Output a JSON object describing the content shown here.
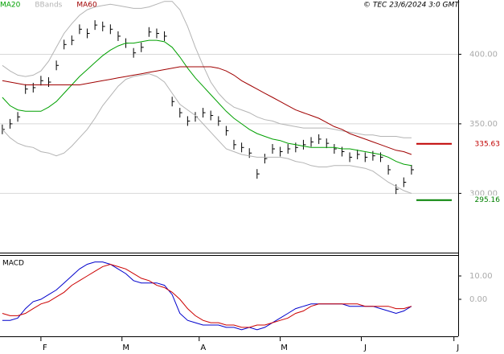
{
  "copyright": "© TEC 23/6/2024 3:0 GMT",
  "chart_data": [
    {
      "type": "line",
      "x": [
        0,
        2,
        4,
        6,
        8,
        10,
        12,
        14,
        16,
        18,
        20,
        22,
        24,
        26,
        28,
        30,
        32,
        34,
        36,
        38,
        40,
        42,
        44,
        46,
        48,
        50,
        52,
        54,
        56,
        58,
        60,
        62,
        64,
        66,
        68,
        70,
        72,
        74,
        76,
        78,
        80,
        82,
        84,
        86,
        88,
        90,
        92,
        94,
        96,
        98,
        100,
        102,
        104,
        106
      ],
      "xlim": [
        -0.6,
        118.1
      ],
      "xticks": [
        {
          "value": 10,
          "label": "F"
        },
        {
          "value": 31,
          "label": "M"
        },
        {
          "value": 51,
          "label": "A"
        },
        {
          "value": 72,
          "label": "M"
        },
        {
          "value": 93,
          "label": "J"
        },
        {
          "value": 117,
          "label": "J"
        }
      ],
      "ylim": [
        258,
        439
      ],
      "yticks": [
        {
          "value": 300,
          "label": "300.00"
        },
        {
          "value": 350,
          "label": "350.00"
        },
        {
          "value": 400,
          "label": "400.00"
        }
      ],
      "grid": true,
      "prices": {
        "color": "#000000",
        "values": [
          346,
          350,
          355,
          375,
          376,
          381,
          380,
          392,
          407,
          410,
          418,
          415,
          421,
          420,
          418,
          413,
          408,
          401,
          405,
          416,
          415,
          413,
          366,
          358,
          352,
          355,
          358,
          356,
          352,
          345,
          335,
          333,
          329,
          314,
          325,
          332,
          330,
          332,
          333,
          335,
          337,
          339,
          336,
          332,
          330,
          326,
          328,
          326,
          327,
          326,
          317,
          303,
          308,
          317
        ]
      },
      "series": [
        {
          "name": "MA20",
          "color": "#00a000",
          "values": [
            369,
            363,
            360,
            359,
            359,
            359,
            362,
            366,
            372,
            378,
            384,
            389,
            394,
            399,
            403,
            406,
            408,
            408,
            409,
            410,
            410,
            409,
            405,
            398,
            390,
            383,
            377,
            371,
            365,
            359,
            354,
            350,
            346,
            343,
            341,
            339,
            338,
            336,
            335,
            334,
            333,
            333,
            333,
            333,
            332,
            332,
            331,
            330,
            329,
            328,
            326,
            323,
            321,
            320
          ]
        },
        {
          "name": "BBands",
          "color": "#b4b4b4",
          "values": [
            392,
            388,
            385,
            384,
            385,
            388,
            395,
            405,
            415,
            422,
            428,
            432,
            434,
            435,
            436,
            435,
            434,
            433,
            433,
            434,
            436,
            438,
            438,
            432,
            420,
            405,
            392,
            380,
            372,
            366,
            362,
            360,
            358,
            355,
            353,
            352,
            350,
            349,
            348,
            347,
            347,
            347,
            347,
            346,
            345,
            344,
            343,
            342,
            342,
            341,
            341,
            341,
            340,
            340
          ],
          "values_lower": [
            346,
            340,
            336,
            334,
            333,
            330,
            329,
            327,
            329,
            334,
            340,
            346,
            354,
            363,
            370,
            377,
            382,
            384,
            385,
            386,
            384,
            380,
            372,
            364,
            360,
            356,
            350,
            344,
            338,
            332,
            330,
            328,
            327,
            326,
            326,
            326,
            326,
            325,
            323,
            322,
            320,
            319,
            319,
            320,
            320,
            320,
            319,
            318,
            316,
            312,
            308,
            305,
            302,
            300
          ]
        },
        {
          "name": "MA60",
          "color": "#a00000",
          "values": [
            381,
            380,
            379,
            378,
            378,
            378,
            378,
            378,
            378,
            378,
            378,
            379,
            380,
            381,
            382,
            383,
            384,
            385,
            386,
            387,
            388,
            389,
            390,
            391,
            391,
            391,
            391,
            391,
            390,
            388,
            385,
            381,
            378,
            375,
            372,
            369,
            366,
            363,
            360,
            358,
            356,
            354,
            351,
            348,
            346,
            343,
            341,
            339,
            337,
            335,
            333,
            331,
            330,
            328
          ]
        }
      ],
      "levels": [
        {
          "value": 335.63,
          "label": "335.63",
          "color": "#c00000"
        },
        {
          "value": 295.16,
          "label": "295.16",
          "color": "#008000"
        }
      ]
    },
    {
      "type": "line",
      "title": "MACD",
      "x": [
        0,
        2,
        4,
        6,
        8,
        10,
        12,
        14,
        16,
        18,
        20,
        22,
        24,
        26,
        28,
        30,
        32,
        34,
        36,
        38,
        40,
        42,
        44,
        46,
        48,
        50,
        52,
        54,
        56,
        58,
        60,
        62,
        64,
        66,
        68,
        70,
        72,
        74,
        76,
        78,
        80,
        82,
        84,
        86,
        88,
        90,
        92,
        94,
        96,
        98,
        100,
        102,
        104,
        106
      ],
      "xlim": [
        -0.6,
        118.1
      ],
      "ylim": [
        -14.8,
        19.3
      ],
      "yticks": [
        {
          "value": 0,
          "label": "0.00"
        },
        {
          "value": 10,
          "label": "10.00"
        }
      ],
      "series": [
        {
          "color": "#0000cc",
          "values": [
            -9,
            -9,
            -8,
            -4,
            -1,
            0,
            2,
            4,
            7,
            10,
            13,
            15,
            16,
            16,
            15,
            13,
            11,
            8,
            7,
            7,
            7,
            6,
            2,
            -6,
            -9,
            -10,
            -11,
            -11,
            -11,
            -12,
            -12,
            -13,
            -12,
            -13,
            -12,
            -10,
            -8,
            -6,
            -4,
            -3,
            -2,
            -2,
            -2,
            -2,
            -2,
            -3,
            -3,
            -3,
            -3,
            -4,
            -5,
            -6,
            -5,
            -3
          ]
        },
        {
          "color": "#cc0000",
          "values": [
            -6,
            -7,
            -7,
            -6,
            -4,
            -2,
            -1,
            1,
            3,
            6,
            8,
            10,
            12,
            14,
            15,
            14,
            13,
            11,
            9,
            8,
            6,
            5,
            3,
            0,
            -4,
            -7,
            -9,
            -10,
            -10,
            -11,
            -11,
            -12,
            -12,
            -11,
            -11,
            -10,
            -9,
            -8,
            -6,
            -5,
            -3,
            -2,
            -2,
            -2,
            -2,
            -2,
            -2,
            -3,
            -3,
            -3,
            -3,
            -4,
            -4,
            -3
          ]
        }
      ]
    }
  ]
}
